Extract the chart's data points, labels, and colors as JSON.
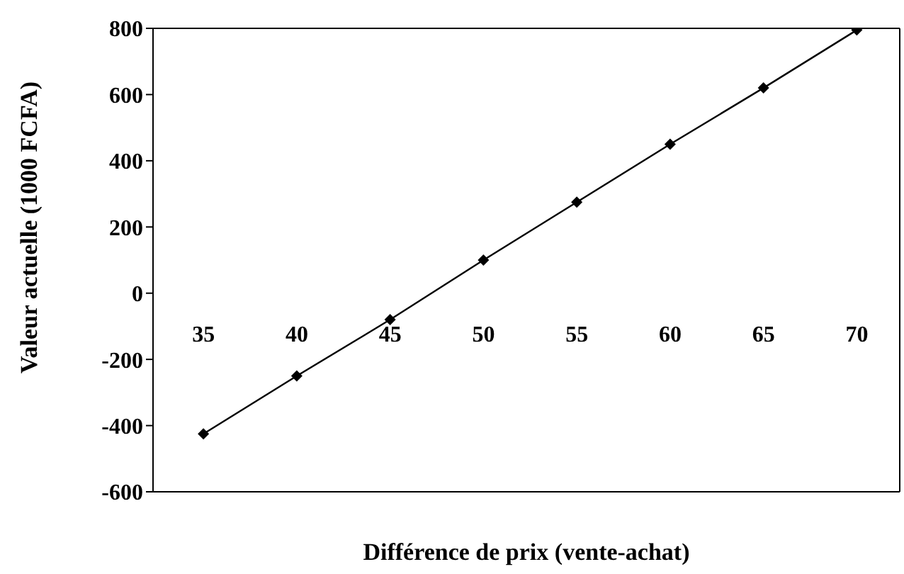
{
  "chart_data": {
    "type": "line",
    "xlabel": "Différence de prix (vente-achat)",
    "ylabel": "Valeur actuelle (1000 FCFA)",
    "x": [
      35,
      40,
      45,
      50,
      55,
      60,
      65,
      70
    ],
    "series": [
      {
        "color": "#000000",
        "values": [
          -425,
          -250,
          -80,
          100,
          275,
          450,
          620,
          795
        ]
      }
    ],
    "xlim": [
      32.3,
      72.3
    ],
    "xticks": [
      35,
      40,
      45,
      50,
      55,
      60,
      65,
      70
    ],
    "ylim": [
      -600,
      800
    ],
    "yticks": [
      -600,
      -400,
      -200,
      0,
      200,
      400,
      600,
      800
    ],
    "marker": "diamond",
    "line_style": "solid",
    "grid": false,
    "legend": false
  }
}
